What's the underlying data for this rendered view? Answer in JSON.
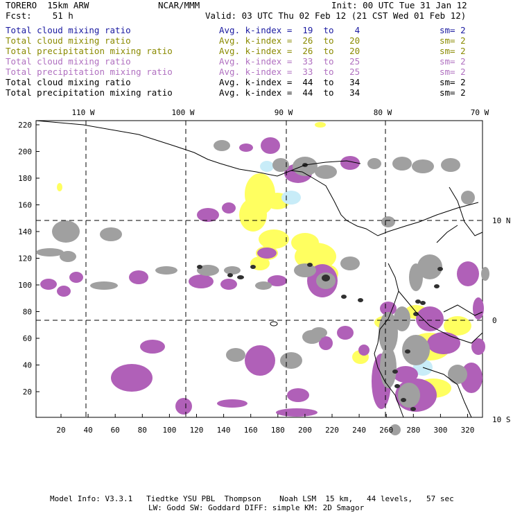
{
  "header": {
    "model": "TORERO  15km ARW",
    "center": "NCAR/MMM",
    "init": "Init: 00 UTC Tue 31 Jan 12",
    "fcst": "Fcst:    51 h",
    "valid": "Valid: 03 UTC Thu 02 Feb 12 (21 CST Wed 01 Feb 12)"
  },
  "legend": [
    {
      "field": "Total cloud mixing ratio",
      "kidx": "Avg. k-index =  19  to    4",
      "sm": "sm= 2",
      "color": "#1a1aa0"
    },
    {
      "field": "Total cloud mixing ratio",
      "kidx": "Avg. k-index =  26  to   20",
      "sm": "sm= 2",
      "color": "#8a8a00"
    },
    {
      "field": "Total precipitation mixing ratio",
      "kidx": "Avg. k-index =  26  to   20",
      "sm": "sm= 2",
      "color": "#8a8a00"
    },
    {
      "field": "Total cloud mixing ratio",
      "kidx": "Avg. k-index =  33  to   25",
      "sm": "sm= 2",
      "color": "#b070c0"
    },
    {
      "field": "Total precipitation mixing ratio",
      "kidx": "Avg. k-index =  33  to   25",
      "sm": "sm= 2",
      "color": "#b070c0"
    },
    {
      "field": "Total cloud mixing ratio",
      "kidx": "Avg. k-index =  44  to   34",
      "sm": "sm= 2",
      "color": "#000000"
    },
    {
      "field": "Total precipitation mixing ratio",
      "kidx": "Avg. k-index =  44  to   34",
      "sm": "sm= 2",
      "color": "#000000"
    }
  ],
  "map": {
    "lon_labels": [
      "110 W",
      "100 W",
      "90 W",
      "80 W",
      "70 W"
    ],
    "lat_labels": [
      "10 N",
      "0",
      "10 S"
    ],
    "y_ticks": [
      "220",
      "200",
      "180",
      "160",
      "140",
      "120",
      "100",
      "80",
      "60",
      "40",
      "20"
    ],
    "x_ticks": [
      "20",
      "40",
      "60",
      "80",
      "100",
      "120",
      "140",
      "160",
      "180",
      "200",
      "220",
      "240",
      "260",
      "280",
      "300",
      "320"
    ],
    "colors": {
      "gray": "#a0a0a0",
      "dark": "#303030",
      "purple": "#b060b8",
      "yellow": "#ffff60",
      "lightblue": "#c8ecf8"
    }
  },
  "footer": {
    "line1": "Model Info: V3.3.1   Tiedtke YSU PBL  Thompson    Noah LSM  15 km,   44 levels,   57 sec",
    "line2": "LW: Godd SW: Goddard DIFF: simple KM: 2D Smagor"
  }
}
